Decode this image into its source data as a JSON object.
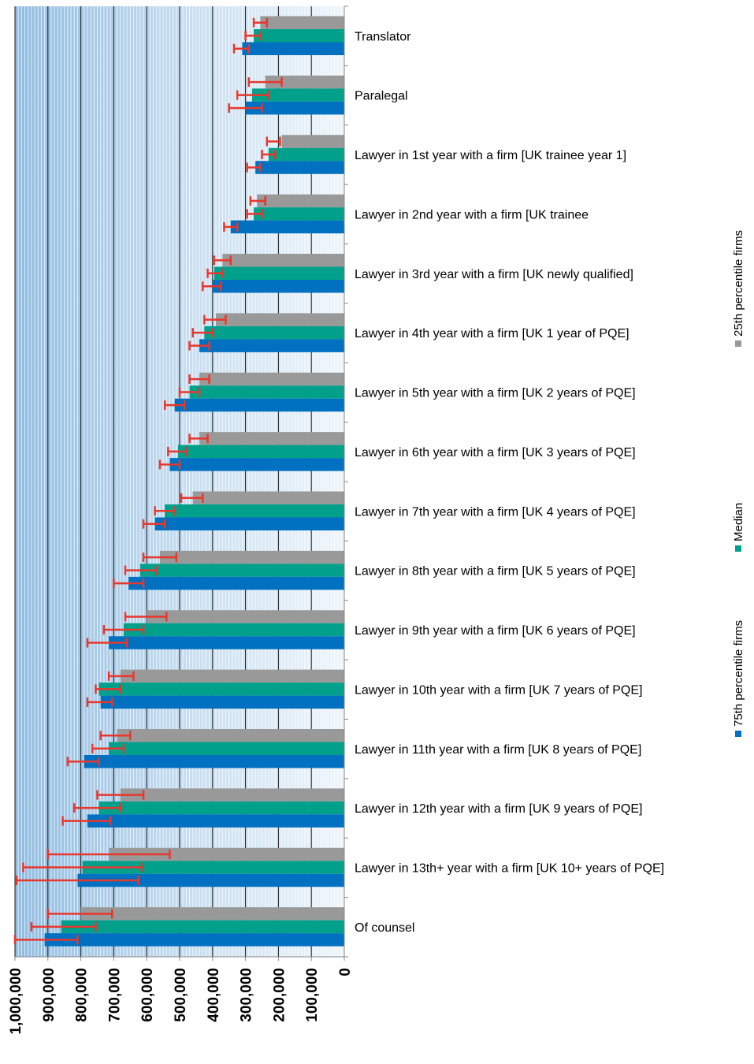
{
  "chart_data": {
    "type": "bar",
    "orientation": "horizontal",
    "x_direction": "reversed",
    "xlim": [
      0,
      1000000
    ],
    "x_ticks": [
      0,
      100000,
      200000,
      300000,
      400000,
      500000,
      600000,
      700000,
      800000,
      900000,
      1000000
    ],
    "x_tick_labels": [
      "0",
      "100,000",
      "200,000",
      "300,000",
      "400,000",
      "500,000",
      "600,000",
      "700,000",
      "800,000",
      "900,000",
      "1,000,000"
    ],
    "grid": true,
    "legend_position": "right",
    "categories": [
      "Translator",
      "Paralegal",
      "Lawyer in 1st year with a firm [UK trainee year 1]",
      "Lawyer in 2nd year with a firm [UK trainee",
      "Lawyer in 3rd year with a firm [UK newly qualified]",
      "Lawyer in 4th year with a firm [UK 1 year of PQE]",
      "Lawyer in 5th year with a firm [UK 2 years of PQE]",
      "Lawyer in 6th year with a firm [UK 3 years of PQE]",
      "Lawyer in 7th year with a firm [UK 4 years of PQE]",
      "Lawyer in 8th year with a firm [UK 5 years of PQE]",
      "Lawyer in 9th year with a firm [UK 6 years of PQE]",
      "Lawyer in 10th year with a firm [UK 7 years of PQE]",
      "Lawyer in 11th year with a firm [UK 8 years of PQE]",
      "Lawyer in 12th year with a firm [UK 9 years of PQE]",
      "Lawyer in 13th+ year with a firm [UK 10+ years of PQE]",
      "Of counsel"
    ],
    "series": [
      {
        "name": "25th percentile firms",
        "color": "#999999",
        "values": [
          255000,
          240000,
          190000,
          265000,
          370000,
          390000,
          440000,
          440000,
          460000,
          560000,
          600000,
          680000,
          690000,
          680000,
          715000,
          800000
        ],
        "error": [
          [
            235000,
            275000
          ],
          [
            190000,
            290000
          ],
          [
            195000,
            235000
          ],
          [
            240000,
            285000
          ],
          [
            345000,
            395000
          ],
          [
            360000,
            425000
          ],
          [
            410000,
            470000
          ],
          [
            415000,
            470000
          ],
          [
            430000,
            495000
          ],
          [
            510000,
            610000
          ],
          [
            540000,
            665000
          ],
          [
            640000,
            715000
          ],
          [
            650000,
            740000
          ],
          [
            610000,
            750000
          ],
          [
            530000,
            900000
          ],
          [
            705000,
            900000
          ]
        ]
      },
      {
        "name": "Median",
        "color": "#00a08a",
        "values": [
          275000,
          280000,
          230000,
          275000,
          395000,
          425000,
          470000,
          505000,
          545000,
          620000,
          670000,
          745000,
          715000,
          745000,
          795000,
          860000
        ],
        "error": [
          [
            255000,
            300000
          ],
          [
            230000,
            325000
          ],
          [
            210000,
            250000
          ],
          [
            250000,
            295000
          ],
          [
            370000,
            415000
          ],
          [
            400000,
            460000
          ],
          [
            440000,
            500000
          ],
          [
            480000,
            535000
          ],
          [
            515000,
            575000
          ],
          [
            570000,
            665000
          ],
          [
            610000,
            730000
          ],
          [
            680000,
            755000
          ],
          [
            670000,
            765000
          ],
          [
            680000,
            820000
          ],
          [
            615000,
            975000
          ],
          [
            755000,
            950000
          ]
        ]
      },
      {
        "name": "75th percentile firms",
        "color": "#0070c0",
        "values": [
          310000,
          300000,
          270000,
          345000,
          400000,
          440000,
          515000,
          530000,
          575000,
          655000,
          715000,
          740000,
          790000,
          780000,
          810000,
          910000
        ],
        "error": [
          [
            290000,
            335000
          ],
          [
            250000,
            350000
          ],
          [
            255000,
            295000
          ],
          [
            325000,
            365000
          ],
          [
            375000,
            430000
          ],
          [
            410000,
            470000
          ],
          [
            485000,
            545000
          ],
          [
            500000,
            560000
          ],
          [
            545000,
            610000
          ],
          [
            610000,
            700000
          ],
          [
            660000,
            780000
          ],
          [
            705000,
            780000
          ],
          [
            745000,
            840000
          ],
          [
            710000,
            855000
          ],
          [
            625000,
            995000
          ],
          [
            810000,
            1000000
          ]
        ]
      }
    ]
  },
  "legend": {
    "items": [
      {
        "label": "75th percentile firms",
        "color": "#0070c0"
      },
      {
        "label": "Median",
        "color": "#00a08a"
      },
      {
        "label": "25th percentile firms",
        "color": "#999999"
      }
    ]
  }
}
